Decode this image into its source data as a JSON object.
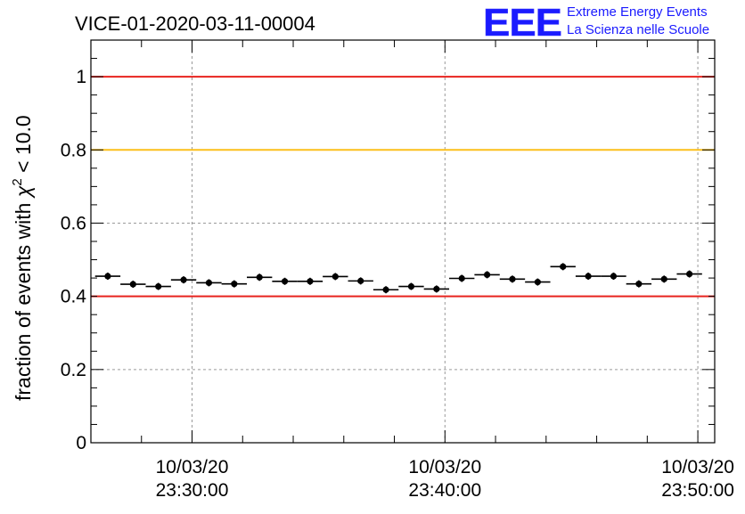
{
  "chart_data": {
    "type": "scatter",
    "title": "VICE-01-2020-03-11-00004",
    "ylabel": {
      "prefix": "fraction of events with ",
      "chi": "χ",
      "sup": "2",
      "suffix": " < 10.0"
    },
    "xlabel": "",
    "ylim": [
      0,
      1.1
    ],
    "yticks": [
      {
        "value": 0,
        "label": "0"
      },
      {
        "value": 0.2,
        "label": "0.2"
      },
      {
        "value": 0.4,
        "label": "0.4"
      },
      {
        "value": 0.6,
        "label": "0.6"
      },
      {
        "value": 0.8,
        "label": "0.8"
      },
      {
        "value": 1,
        "label": "1"
      }
    ],
    "xlim": [
      "2020-03-10 23:26:00",
      "2020-03-10 23:50:40"
    ],
    "xticks_major": [
      {
        "time": "2020-03-10 23:30:00",
        "date": "10/03/20",
        "clock": "23:30:00"
      },
      {
        "time": "2020-03-10 23:40:00",
        "date": "10/03/20",
        "clock": "23:40:00"
      },
      {
        "time": "2020-03-10 23:50:00",
        "date": "10/03/20",
        "clock": "23:50:00"
      }
    ],
    "grid": true,
    "reference_lines": [
      {
        "y": 1.0,
        "color": "#e8231e"
      },
      {
        "y": 0.8,
        "color": "#fcbf1a"
      },
      {
        "y": 0.4,
        "color": "#e8231e"
      }
    ],
    "series": [
      {
        "marker_color": "#000000",
        "points": [
          {
            "x": "2020-03-10 23:26:40",
            "y": 0.455
          },
          {
            "x": "2020-03-10 23:27:40",
            "y": 0.433
          },
          {
            "x": "2020-03-10 23:28:40",
            "y": 0.427
          },
          {
            "x": "2020-03-10 23:29:40",
            "y": 0.445
          },
          {
            "x": "2020-03-10 23:30:40",
            "y": 0.437
          },
          {
            "x": "2020-03-10 23:31:40",
            "y": 0.434
          },
          {
            "x": "2020-03-10 23:32:40",
            "y": 0.452
          },
          {
            "x": "2020-03-10 23:33:40",
            "y": 0.441
          },
          {
            "x": "2020-03-10 23:34:40",
            "y": 0.441
          },
          {
            "x": "2020-03-10 23:35:40",
            "y": 0.454
          },
          {
            "x": "2020-03-10 23:36:40",
            "y": 0.442
          },
          {
            "x": "2020-03-10 23:37:40",
            "y": 0.418
          },
          {
            "x": "2020-03-10 23:38:40",
            "y": 0.427
          },
          {
            "x": "2020-03-10 23:39:40",
            "y": 0.42
          },
          {
            "x": "2020-03-10 23:40:40",
            "y": 0.449
          },
          {
            "x": "2020-03-10 23:41:40",
            "y": 0.459
          },
          {
            "x": "2020-03-10 23:42:40",
            "y": 0.447
          },
          {
            "x": "2020-03-10 23:43:40",
            "y": 0.439
          },
          {
            "x": "2020-03-10 23:44:40",
            "y": 0.481
          },
          {
            "x": "2020-03-10 23:45:40",
            "y": 0.455
          },
          {
            "x": "2020-03-10 23:46:40",
            "y": 0.455
          },
          {
            "x": "2020-03-10 23:47:40",
            "y": 0.434
          },
          {
            "x": "2020-03-10 23:48:40",
            "y": 0.447
          },
          {
            "x": "2020-03-10 23:49:40",
            "y": 0.461
          }
        ],
        "bin_width": "00:01:00"
      }
    ]
  },
  "logo": {
    "mark": "EEE",
    "line1": "Extreme Energy Events",
    "line2": "La Scienza nelle Scuole"
  },
  "colors": {
    "logo_blue": "#1a1aff",
    "grid": "#9a9a9a"
  }
}
